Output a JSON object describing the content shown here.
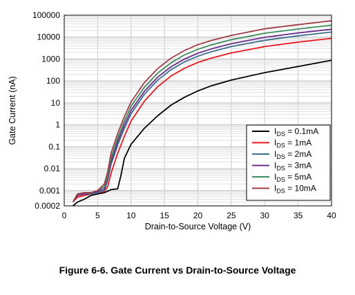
{
  "figure_caption": "Figure 6-6. Gate Current vs Drain-to-Source Voltage",
  "chart_data": {
    "type": "line",
    "title": "",
    "xlabel": "Drain-to-Source Voltage (V)",
    "ylabel": "Gate Current (nA)",
    "xlim": [
      0,
      40
    ],
    "ylim": [
      0.0002,
      100000
    ],
    "yscale": "log",
    "grid": true,
    "legend_position": "bottom-right",
    "xticks": [
      0,
      5,
      10,
      15,
      20,
      25,
      30,
      35,
      40
    ],
    "xtick_labels": [
      "0",
      "5",
      "10",
      "15",
      "20",
      "25",
      "30",
      "35",
      "40"
    ],
    "yticks": [
      0.0002,
      0.001,
      0.01,
      0.1,
      1,
      10,
      100,
      1000,
      10000,
      100000
    ],
    "ytick_labels": [
      "0.0002",
      "0.001",
      "0.01",
      "0.1",
      "1",
      "10",
      "100",
      "1000",
      "10000",
      "100000"
    ],
    "series": [
      {
        "name_sub": "DS",
        "name_value": "= 0.1mA",
        "color": "#000000",
        "x": [
          1.3,
          2,
          3,
          4,
          5,
          6,
          7,
          8,
          8.5,
          9,
          10,
          12,
          14,
          16,
          18,
          20,
          22,
          25,
          30,
          35,
          40
        ],
        "y": [
          0.0002,
          0.0003,
          0.0004,
          0.0006,
          0.0007,
          0.0008,
          0.0011,
          0.0012,
          0.005,
          0.03,
          0.13,
          0.7,
          2.6,
          8,
          18,
          35,
          60,
          110,
          240,
          460,
          880
        ]
      },
      {
        "name_sub": "DS",
        "name_value": "= 1mA",
        "color": "#e8141c",
        "x": [
          1.3,
          2,
          3,
          4,
          5,
          6,
          6.5,
          7,
          8,
          9,
          10,
          12,
          14,
          16,
          18,
          20,
          22,
          25,
          30,
          35,
          40
        ],
        "y": [
          0.0003,
          0.0005,
          0.0006,
          0.0007,
          0.0008,
          0.0009,
          0.0015,
          0.006,
          0.05,
          0.3,
          1.5,
          12,
          55,
          170,
          380,
          700,
          1100,
          1900,
          3700,
          5900,
          8800
        ]
      },
      {
        "name_sub": "DS",
        "name_value": "= 2mA",
        "color": "#3d6e8e",
        "x": [
          1.3,
          2,
          3,
          4,
          5,
          6,
          6.5,
          7,
          8,
          9,
          10,
          12,
          14,
          16,
          18,
          20,
          22,
          25,
          30,
          35,
          40
        ],
        "y": [
          0.0003,
          0.0006,
          0.0007,
          0.0007,
          0.0008,
          0.001,
          0.003,
          0.015,
          0.12,
          0.7,
          3.2,
          25,
          110,
          330,
          740,
          1350,
          2150,
          3700,
          7200,
          11500,
          17000
        ]
      },
      {
        "name_sub": "DS",
        "name_value": "= 3mA",
        "color": "#6b2d8a",
        "x": [
          1.3,
          2,
          3,
          4,
          5,
          6,
          6.5,
          7,
          8,
          9,
          10,
          12,
          14,
          16,
          18,
          20,
          22,
          25,
          30,
          35,
          40
        ],
        "y": [
          0.0003,
          0.0006,
          0.0007,
          0.0008,
          0.0009,
          0.0012,
          0.004,
          0.02,
          0.17,
          1.0,
          4.5,
          34,
          150,
          450,
          1000,
          1850,
          2900,
          5000,
          9800,
          15500,
          23000
        ]
      },
      {
        "name_sub": "DS",
        "name_value": "= 5mA",
        "color": "#3f8a5c",
        "x": [
          1.3,
          2,
          3,
          4,
          5,
          6,
          6.5,
          7,
          8,
          9,
          10,
          12,
          14,
          16,
          18,
          20,
          22,
          25,
          30,
          35,
          40
        ],
        "y": [
          0.0003,
          0.0007,
          0.0008,
          0.0008,
          0.001,
          0.0015,
          0.005,
          0.03,
          0.25,
          1.5,
          7,
          52,
          230,
          680,
          1550,
          2800,
          4400,
          7600,
          15000,
          23500,
          35000
        ]
      },
      {
        "name_sub": "DS",
        "name_value": "= 10mA",
        "color": "#a03c46",
        "x": [
          1.3,
          2,
          3,
          4,
          5,
          6,
          6.5,
          7,
          8,
          9,
          10,
          12,
          14,
          16,
          18,
          20,
          22,
          25,
          30,
          35,
          40
        ],
        "y": [
          0.0003,
          0.0007,
          0.0008,
          0.0008,
          0.001,
          0.002,
          0.007,
          0.05,
          0.4,
          2.4,
          11,
          85,
          370,
          1100,
          2450,
          4500,
          7000,
          12000,
          24000,
          37000,
          56000
        ]
      }
    ],
    "legend_prefix": "I"
  }
}
